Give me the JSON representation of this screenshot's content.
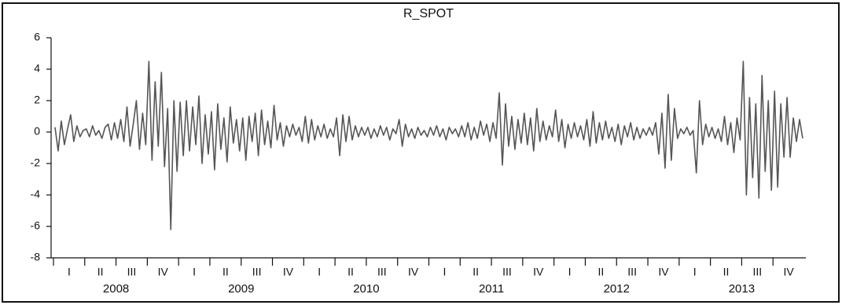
{
  "chart_data": {
    "type": "line",
    "title": "R_SPOT",
    "categories": [
      "I",
      null,
      null,
      null,
      null,
      null,
      null,
      null,
      null,
      null,
      "II",
      null,
      null,
      null,
      null,
      null,
      null,
      null,
      null,
      null,
      "III",
      null,
      null,
      null,
      null,
      null,
      null,
      null,
      null,
      null,
      "IV",
      null,
      null,
      null,
      null,
      null,
      null,
      null,
      null,
      null,
      "I",
      null,
      null,
      null,
      null,
      null,
      null,
      null,
      null,
      null,
      "II",
      null,
      null,
      null,
      null,
      null,
      null,
      null,
      null,
      null,
      "III",
      null,
      null,
      null,
      null,
      null,
      null,
      null,
      null,
      null,
      "IV",
      null,
      null,
      null,
      null,
      null,
      null,
      null,
      null,
      null,
      "I",
      null,
      null,
      null,
      null,
      null,
      null,
      null,
      null,
      null,
      "II",
      null,
      null,
      null,
      null,
      null,
      null,
      null,
      null,
      null,
      "III",
      null,
      null,
      null,
      null,
      null,
      null,
      null,
      null,
      null,
      "IV",
      null,
      null,
      null,
      null,
      null,
      null,
      null,
      null,
      null,
      "I",
      null,
      null,
      null,
      null,
      null,
      null,
      null,
      null,
      null,
      "II",
      null,
      null,
      null,
      null,
      null,
      null,
      null,
      null,
      null,
      "III",
      null,
      null,
      null,
      null,
      null,
      null,
      null,
      null,
      null,
      "IV",
      null,
      null,
      null,
      null,
      null,
      null,
      null,
      null,
      null,
      "I",
      null,
      null,
      null,
      null,
      null,
      null,
      null,
      null,
      null,
      "II",
      null,
      null,
      null,
      null,
      null,
      null,
      null,
      null,
      null,
      "III",
      null,
      null,
      null,
      null,
      null,
      null,
      null,
      null,
      null,
      "IV",
      null,
      null,
      null,
      null,
      null,
      null,
      null,
      null,
      null,
      "I",
      null,
      null,
      null,
      null,
      null,
      null,
      null,
      null,
      null,
      "II",
      null,
      null,
      null,
      null,
      null,
      null,
      null,
      null,
      null,
      "III",
      null,
      null,
      null,
      null,
      null,
      null,
      null,
      null,
      null,
      "IV",
      null,
      null,
      null,
      null,
      null,
      null,
      null,
      null,
      null
    ],
    "years": [
      "2008",
      "2009",
      "2010",
      "2011",
      "2012",
      "2013"
    ],
    "values": [
      0.3,
      -1.2,
      0.7,
      -0.8,
      0.2,
      1.1,
      -0.6,
      0.4,
      -0.3,
      0.1,
      0.2,
      -0.3,
      0.4,
      -0.2,
      0.1,
      -0.4,
      0.3,
      0.5,
      -0.5,
      0.6,
      -0.4,
      0.8,
      -0.6,
      1.6,
      -0.9,
      0.5,
      2.0,
      -1.1,
      1.2,
      -0.8,
      4.5,
      -1.8,
      3.2,
      -0.9,
      3.8,
      -2.2,
      1.5,
      -6.2,
      2.0,
      -2.5,
      1.9,
      -1.5,
      2.0,
      -1.2,
      1.6,
      -0.8,
      2.3,
      -2.0,
      1.1,
      -1.4,
      1.3,
      -2.4,
      1.8,
      -1.1,
      0.9,
      -1.9,
      1.6,
      -0.7,
      0.8,
      -1.2,
      0.9,
      -1.8,
      1.0,
      -0.6,
      1.2,
      -1.5,
      1.4,
      -0.8,
      0.7,
      -1.0,
      1.7,
      -0.5,
      0.6,
      -0.9,
      0.4,
      -0.3,
      0.5,
      -0.2,
      0.3,
      -0.6,
      1.0,
      -0.7,
      0.8,
      -0.5,
      0.4,
      -0.3,
      0.5,
      -0.4,
      0.2,
      -0.3,
      0.9,
      -1.5,
      1.1,
      -0.6,
      1.0,
      -0.5,
      0.4,
      -0.3,
      0.3,
      -0.2,
      0.3,
      -0.4,
      0.2,
      -0.3,
      0.4,
      -0.2,
      0.3,
      -0.5,
      0.2,
      -0.1,
      0.8,
      -0.9,
      0.5,
      -0.3,
      0.2,
      -0.4,
      0.3,
      -0.2,
      0.1,
      -0.3,
      0.3,
      -0.2,
      0.4,
      -0.3,
      0.2,
      -0.5,
      0.3,
      -0.1,
      0.2,
      -0.3,
      0.4,
      -0.3,
      0.6,
      -0.5,
      0.3,
      -0.4,
      0.7,
      -0.2,
      0.5,
      -0.6,
      0.6,
      -0.4,
      2.5,
      -2.1,
      1.8,
      -0.9,
      1.0,
      -1.1,
      0.8,
      -0.7,
      1.2,
      -0.8,
      0.9,
      -1.2,
      1.5,
      -0.6,
      0.7,
      -0.5,
      0.4,
      -0.3,
      1.4,
      -0.6,
      0.8,
      -1.0,
      0.5,
      -0.4,
      0.6,
      -0.3,
      0.4,
      -0.5,
      0.8,
      -0.9,
      1.3,
      -0.7,
      0.6,
      -0.5,
      0.7,
      -0.4,
      0.3,
      -0.6,
      0.5,
      -0.8,
      0.4,
      -0.3,
      0.6,
      -0.5,
      0.3,
      -0.4,
      0.2,
      -0.2,
      0.3,
      -0.2,
      0.6,
      -1.4,
      1.2,
      -2.3,
      2.4,
      -1.8,
      1.5,
      -0.4,
      0.2,
      -0.1,
      0.3,
      -0.2,
      0.1,
      -2.6,
      2.0,
      -0.8,
      0.5,
      -0.3,
      0.3,
      -0.4,
      0.2,
      -0.6,
      1.0,
      -0.8,
      0.6,
      -1.3,
      0.9,
      -0.5,
      4.5,
      -4.0,
      2.2,
      -2.9,
      1.8,
      -4.2,
      3.6,
      -2.5,
      2.0,
      -3.7,
      2.6,
      -3.5,
      1.8,
      -1.6,
      2.2,
      -1.6,
      0.9,
      -0.6,
      0.8,
      -0.4
    ],
    "color": "#555555",
    "ylim": [
      -8,
      6
    ],
    "yticks": [
      -8,
      -6,
      -4,
      -2,
      0,
      2,
      4,
      6
    ]
  }
}
